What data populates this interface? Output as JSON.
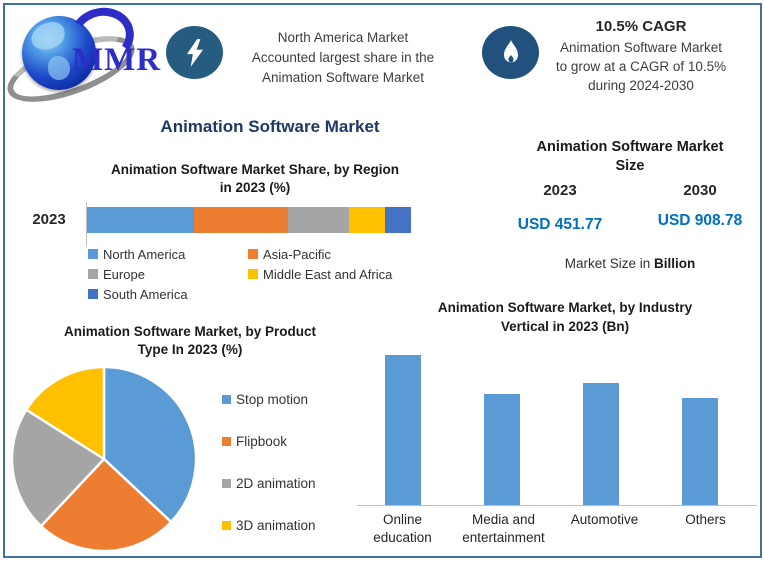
{
  "header": {
    "logo": {
      "text": "MMR"
    },
    "banner_left": {
      "lines": [
        "North America Market",
        "Accounted largest share in the",
        "Animation Software Market"
      ]
    },
    "banner_right": {
      "headline": "10.5% CAGR",
      "lines": [
        "Animation Software Market",
        "to grow at a CAGR of 10.5%",
        "during 2024-2030"
      ]
    }
  },
  "main_title": "Animation Software Market",
  "market_size": {
    "title_lines": [
      "Animation Software Market",
      "Size"
    ],
    "columns": [
      {
        "year": "2023",
        "value": "USD 451.77"
      },
      {
        "year": "2030",
        "value": "USD 908.78"
      }
    ],
    "footnote_regular": "Market Size in",
    "footnote_bold": "Billion",
    "value_color": "#0070C0"
  },
  "colors": {
    "title_navy": "#1F3864",
    "frame_border": "#41719C",
    "bolt_circle": "#255C80",
    "flame_circle": "#23517E",
    "chart_blue": "#5B9BD5",
    "chart_orange": "#ED7D31",
    "chart_gray": "#A5A5A5",
    "chart_yellow": "#FFC000",
    "chart_dark_blue": "#4472C4",
    "usd_blue": "#0070C0"
  },
  "chart_data": [
    {
      "type": "bar",
      "subtype": "horizontal-stacked",
      "title": "Animation Software Market Share, by Region in 2023 (%)",
      "title_lines": [
        "Animation Software Market Share, by Region",
        "in 2023 (%)"
      ],
      "categories": [
        "2023"
      ],
      "series": [
        {
          "name": "North America",
          "values": [
            33
          ],
          "color": "#5B9BD5"
        },
        {
          "name": "Asia-Pacific",
          "values": [
            29
          ],
          "color": "#ED7D31"
        },
        {
          "name": "Europe",
          "values": [
            19
          ],
          "color": "#A5A5A5"
        },
        {
          "name": "Middle East and Africa",
          "values": [
            11
          ],
          "color": "#FFC000"
        },
        {
          "name": "South America",
          "values": [
            8
          ],
          "color": "#4472C4"
        }
      ],
      "unit": "%",
      "xlim": [
        0,
        100
      ],
      "legend_position": "bottom"
    },
    {
      "type": "pie",
      "title": "Animation Software Market, by Product Type In 2023 (%)",
      "title_lines": [
        "Animation Software Market, by Product",
        "Type In 2023 (%)"
      ],
      "labels": [
        "Stop motion",
        "Flipbook",
        "2D animation",
        "3D animation"
      ],
      "values": [
        37,
        25,
        22,
        16
      ],
      "colors": [
        "#5B9BD5",
        "#ED7D31",
        "#A5A5A5",
        "#FFC000"
      ],
      "start_angle_deg": 0,
      "unit": "%",
      "legend_position": "right"
    },
    {
      "type": "bar",
      "title": "Animation Software Market, by Industry Vertical in 2023 (Bn)",
      "title_lines": [
        "Animation Software Market, by Industry",
        "Vertical in 2023 (Bn)"
      ],
      "categories": [
        "Online education",
        "Media and entertainment",
        "Automotive",
        "Others"
      ],
      "category_label_lines": [
        [
          "Online",
          "education"
        ],
        [
          "Media and",
          "entertainment"
        ],
        [
          "Automotive"
        ],
        [
          "Others"
        ]
      ],
      "values": [
        100,
        74,
        81,
        71
      ],
      "bar_color": "#5B9BD5",
      "ylabel": "",
      "grid": false
    }
  ]
}
